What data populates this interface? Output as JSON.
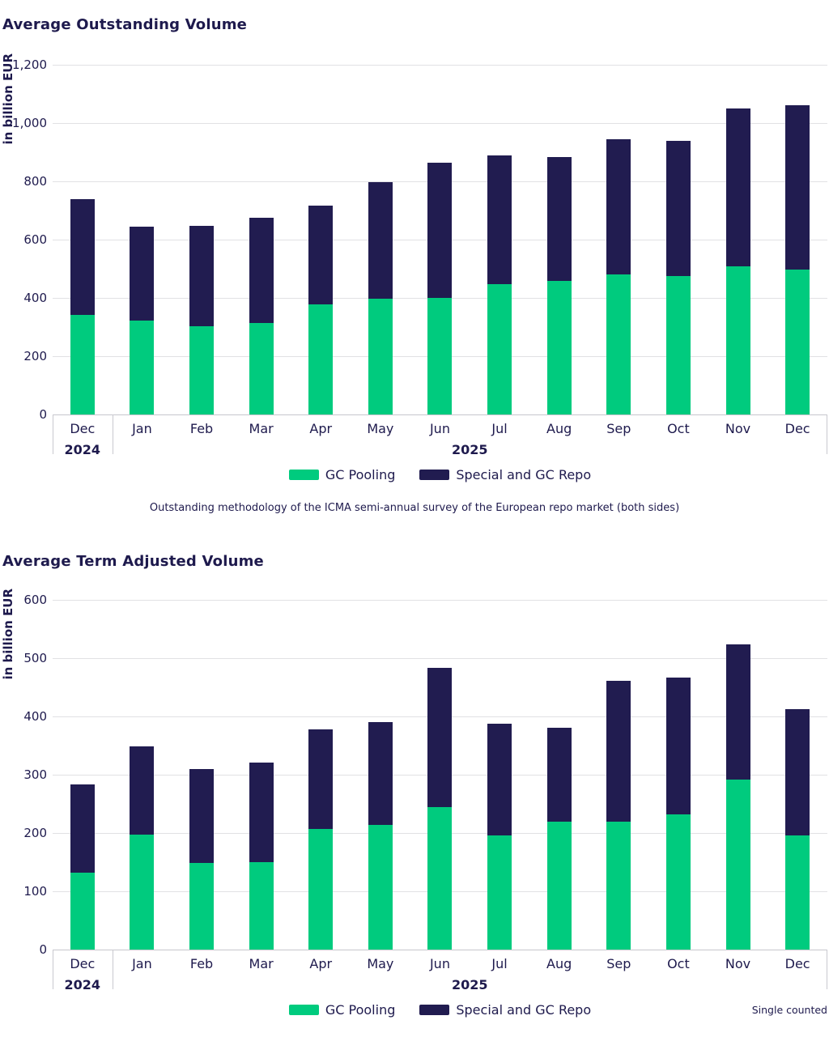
{
  "styles": {
    "text_color": "#1E1A4D",
    "gridline_color": "#E1E1E4",
    "axis_color": "#C6C6CC",
    "gc_pooling_color": "#00CB7E",
    "special_repo_color": "#211C50",
    "background": "#FFFFFF"
  },
  "chart_data": [
    {
      "type": "bar",
      "stacked": true,
      "title": "Average Outstanding Volume",
      "ylabel": "in billion EUR",
      "categories": [
        "Dec",
        "Jan",
        "Feb",
        "Mar",
        "Apr",
        "May",
        "Jun",
        "Jul",
        "Aug",
        "Sep",
        "Oct",
        "Nov",
        "Dec"
      ],
      "year_groups": [
        {
          "label": "2024",
          "cols": 1
        },
        {
          "label": "2025",
          "cols": 12
        }
      ],
      "series": [
        {
          "name": "GC Pooling",
          "color": "#00CB7E",
          "values": [
            342,
            323,
            303,
            315,
            377,
            397,
            399,
            447,
            457,
            480,
            476,
            508,
            498
          ]
        },
        {
          "name": "Special and GC Repo",
          "color": "#211C50",
          "values": [
            396,
            322,
            345,
            361,
            341,
            401,
            465,
            442,
            426,
            464,
            462,
            541,
            563
          ]
        }
      ],
      "totals": [
        738,
        645,
        648,
        676,
        718,
        798,
        864,
        889,
        883,
        944,
        938,
        1049,
        1061
      ],
      "ylim": [
        0,
        1200
      ],
      "ytick_step": 200,
      "grid": true,
      "legend_position": "bottom",
      "note": "Outstanding methodology of the ICMA semi-annual survey of the European repo market (both sides)"
    },
    {
      "type": "bar",
      "stacked": true,
      "title": "Average Term Adjusted Volume",
      "ylabel": "in billion EUR",
      "categories": [
        "Dec",
        "Jan",
        "Feb",
        "Mar",
        "Apr",
        "May",
        "Jun",
        "Jul",
        "Aug",
        "Sep",
        "Oct",
        "Nov",
        "Dec"
      ],
      "year_groups": [
        {
          "label": "2024",
          "cols": 1
        },
        {
          "label": "2025",
          "cols": 12
        }
      ],
      "series": [
        {
          "name": "GC Pooling",
          "color": "#00CB7E",
          "values": [
            132,
            197,
            148,
            150,
            207,
            214,
            245,
            196,
            220,
            220,
            232,
            291,
            196
          ]
        },
        {
          "name": "Special and GC Repo",
          "color": "#211C50",
          "values": [
            151,
            151,
            162,
            171,
            171,
            176,
            238,
            192,
            160,
            241,
            235,
            233,
            216
          ]
        }
      ],
      "totals": [
        283,
        348,
        310,
        321,
        378,
        390,
        483,
        388,
        380,
        461,
        467,
        524,
        412
      ],
      "ylim": [
        0,
        600
      ],
      "ytick_step": 100,
      "grid": true,
      "legend_position": "bottom",
      "note_right": "Single counted"
    }
  ]
}
